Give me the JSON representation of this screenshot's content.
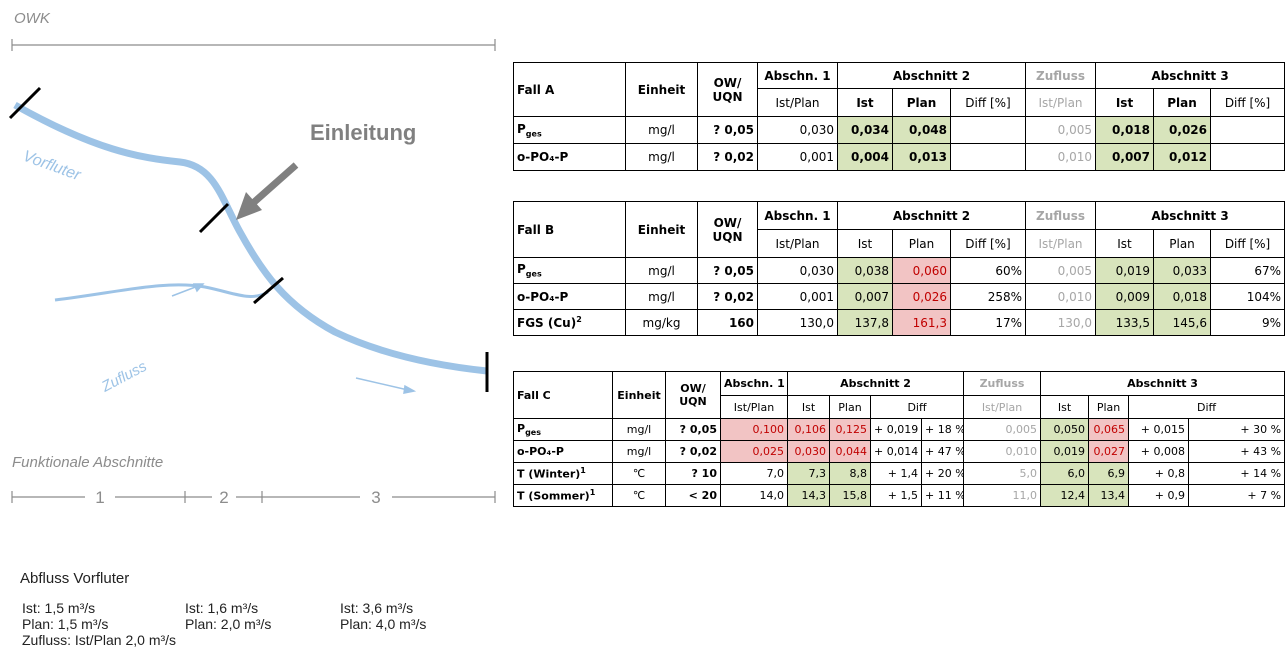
{
  "diagram": {
    "owk": "OWK",
    "einleitung": "Einleitung",
    "vorfluter": "Vorfluter",
    "zufluss": "Zufluss",
    "funktionale": "Funktionale Abschnitte",
    "sections": [
      "1",
      "2",
      "3"
    ]
  },
  "abfluss": {
    "title": "Abfluss Vorfluter",
    "columns": [
      [
        "Ist: 1,5 m³/s",
        "Plan: 1,5 m³/s"
      ],
      [
        "Ist: 1,6 m³/s",
        "Plan: 2,0 m³/s"
      ],
      [
        "Ist: 3,6 m³/s",
        "Plan: 4,0 m³/s"
      ]
    ],
    "zufluss": "Zufluss: Ist/Plan 2,0 m³/s"
  },
  "tables": [
    {
      "header": {
        "case": "Fall A",
        "unit": "Einheit",
        "ow": "OW/",
        "uqn": "UQN",
        "groups": [
          "Abschn. 1",
          "Abschnitt 2",
          "Zufluss",
          "Abschnitt 3"
        ],
        "sub": [
          "Ist/Plan",
          "Ist",
          "Plan",
          "Diff [%]",
          "Ist/Plan",
          "Ist",
          "Plan",
          "Diff [%]"
        ]
      },
      "bold_values": true,
      "rows": [
        {
          "label": {
            "t": "P",
            "sub": "ges"
          },
          "cells": [
            "mg/l",
            "? 0,05",
            "0,030",
            {
              "t": "0,034",
              "s": "green"
            },
            {
              "t": "0,048",
              "s": "green"
            },
            null,
            "0,005",
            {
              "t": "0,018",
              "s": "green"
            },
            {
              "t": "0,026",
              "s": "green"
            },
            null
          ]
        },
        {
          "label": {
            "t": "o-PO₄-P"
          },
          "cells": [
            "mg/l",
            "? 0,02",
            "0,001",
            {
              "t": "0,004",
              "s": "green"
            },
            {
              "t": "0,013",
              "s": "green"
            },
            null,
            "0,010",
            {
              "t": "0,007",
              "s": "green"
            },
            {
              "t": "0,012",
              "s": "green"
            },
            null
          ]
        }
      ]
    },
    {
      "header": {
        "case": "Fall B",
        "unit": "Einheit",
        "ow": "OW/",
        "uqn": "UQN",
        "groups": [
          "Abschn. 1",
          "Abschnitt 2",
          "Zufluss",
          "Abschnitt 3"
        ],
        "sub": [
          "Ist/Plan",
          "Ist",
          "Plan",
          "Diff [%]",
          "Ist/Plan",
          "Ist",
          "Plan",
          "Diff [%]"
        ]
      },
      "bold_values": false,
      "rows": [
        {
          "label": {
            "t": "P",
            "sub": "ges"
          },
          "cells": [
            "mg/l",
            "? 0,05",
            "0,030",
            {
              "t": "0,038",
              "s": "green"
            },
            {
              "t": "0,060",
              "s": "red"
            },
            "60%",
            "0,005",
            {
              "t": "0,019",
              "s": "green"
            },
            {
              "t": "0,033",
              "s": "green"
            },
            "67%"
          ]
        },
        {
          "label": {
            "t": "o-PO₄-P"
          },
          "cells": [
            "mg/l",
            "? 0,02",
            "0,001",
            {
              "t": "0,007",
              "s": "green"
            },
            {
              "t": "0,026",
              "s": "red"
            },
            "258%",
            "0,010",
            {
              "t": "0,009",
              "s": "green"
            },
            {
              "t": "0,018",
              "s": "green"
            },
            "104%"
          ]
        },
        {
          "label": {
            "t": "FGS (Cu)",
            "sup": "2"
          },
          "cells": [
            "mg/kg",
            "160",
            "130,0",
            {
              "t": "137,8",
              "s": "green"
            },
            {
              "t": "161,3",
              "s": "red"
            },
            "17%",
            "130,0",
            {
              "t": "133,5",
              "s": "green"
            },
            {
              "t": "145,6",
              "s": "green"
            },
            "9%"
          ]
        }
      ]
    },
    {
      "header": {
        "case": "Fall C",
        "unit": "Einheit",
        "ow": "OW/",
        "uqn": "UQN",
        "groups": [
          "Abschn. 1",
          "Abschnitt 2",
          "Zufluss",
          "Abschnitt 3"
        ],
        "sub": [
          "Ist/Plan",
          "Ist",
          "Plan",
          "Diff",
          "Ist/Plan",
          "Ist",
          "Plan",
          "Diff"
        ]
      },
      "bold_values": false,
      "rows": [
        {
          "label": {
            "t": "P",
            "sub": "ges"
          },
          "cells": [
            "mg/l",
            "? 0,05",
            {
              "t": "0,100",
              "s": "red"
            },
            {
              "t": "0,106",
              "s": "red"
            },
            {
              "t": "0,125",
              "s": "red"
            },
            "+ 0,019",
            "+ 18 %",
            "0,005",
            {
              "t": "0,050",
              "s": "green"
            },
            {
              "t": "0,065",
              "s": "red"
            },
            "+ 0,015",
            "+ 30 %"
          ]
        },
        {
          "label": {
            "t": "o-PO₄-P"
          },
          "cells": [
            "mg/l",
            "? 0,02",
            {
              "t": "0,025",
              "s": "red"
            },
            {
              "t": "0,030",
              "s": "red"
            },
            {
              "t": "0,044",
              "s": "red"
            },
            "+ 0,014",
            "+ 47 %",
            "0,010",
            {
              "t": "0,019",
              "s": "green"
            },
            {
              "t": "0,027",
              "s": "red"
            },
            "+ 0,008",
            "+ 43 %"
          ]
        },
        {
          "label": {
            "t": "T (Winter)",
            "sup": "1"
          },
          "cells": [
            "℃",
            "? 10",
            "7,0",
            {
              "t": "7,3",
              "s": "green"
            },
            {
              "t": "8,8",
              "s": "green"
            },
            "+ 1,4",
            "+ 20 %",
            "5,0",
            {
              "t": "6,0",
              "s": "green"
            },
            {
              "t": "6,9",
              "s": "green"
            },
            "+ 0,8",
            "+ 14 %"
          ]
        },
        {
          "label": {
            "t": "T (Sommer)",
            "sup": "1"
          },
          "cells": [
            "℃",
            "< 20",
            "14,0",
            {
              "t": "14,3",
              "s": "green"
            },
            {
              "t": "15,8",
              "s": "green"
            },
            "+ 1,5",
            "+ 11 %",
            "11,0",
            {
              "t": "12,4",
              "s": "green"
            },
            {
              "t": "13,4",
              "s": "green"
            },
            "+ 0,9",
            "+ 7 %"
          ]
        }
      ]
    }
  ]
}
